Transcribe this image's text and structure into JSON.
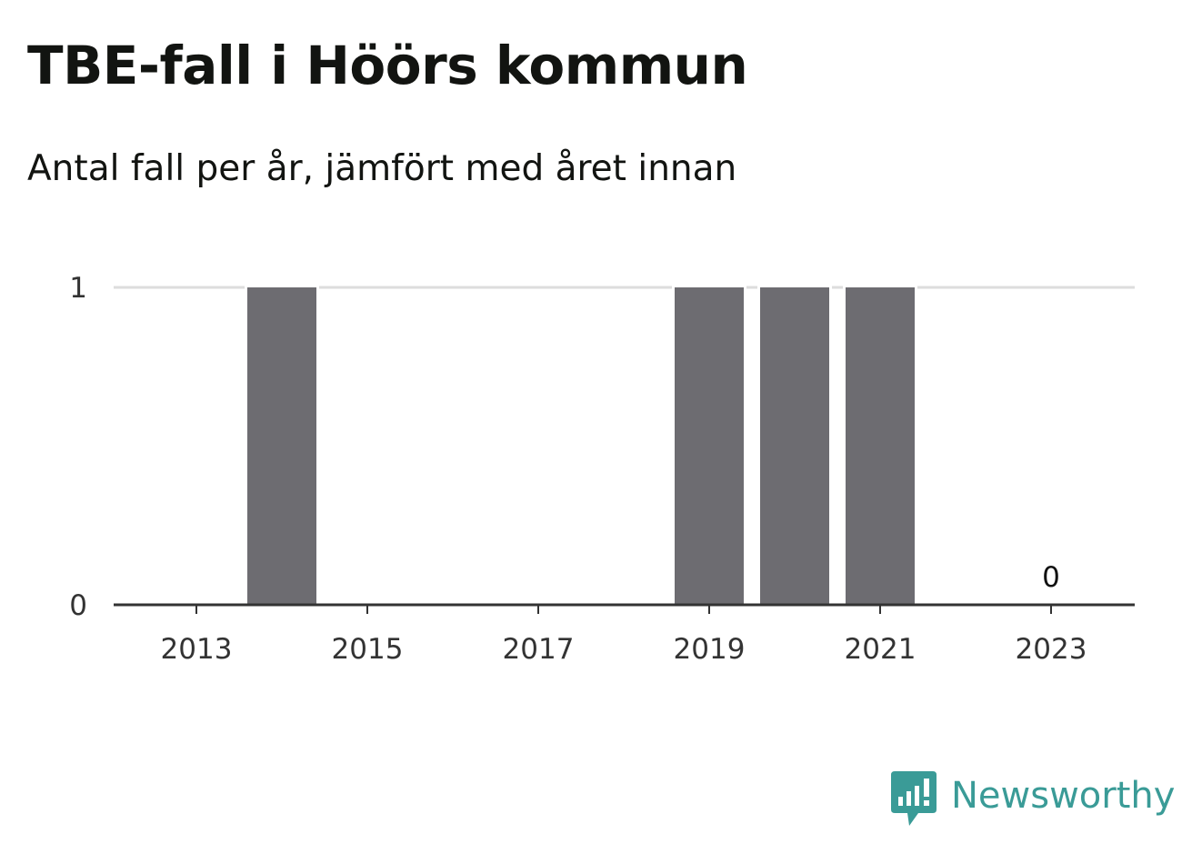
{
  "title": "TBE-fall i Höörs kommun",
  "subtitle": "Antal fall per år, jämfört med året innan",
  "brand": {
    "name": "Newsworthy",
    "logo_icon": "newsworthy-logo-icon",
    "color": "#3a9b97"
  },
  "colors": {
    "bar": "#6d6c71",
    "gridline": "#dddddd",
    "baseline": "#333333"
  },
  "chart_data": {
    "type": "bar",
    "categories": [
      "2013",
      "2014",
      "2015",
      "2016",
      "2017",
      "2018",
      "2019",
      "2020",
      "2021",
      "2022",
      "2023"
    ],
    "values": [
      0,
      1,
      0,
      0,
      0,
      0,
      1,
      1,
      1,
      0,
      0
    ],
    "x_tick_labels": [
      "2013",
      "2015",
      "2017",
      "2019",
      "2021",
      "2023"
    ],
    "y_ticks": [
      0,
      1
    ],
    "ylim": [
      0,
      1
    ],
    "grid": true,
    "legend": "none",
    "data_labels": [
      {
        "category": "2023",
        "text": "0"
      }
    ],
    "xlabel": "",
    "ylabel": ""
  }
}
